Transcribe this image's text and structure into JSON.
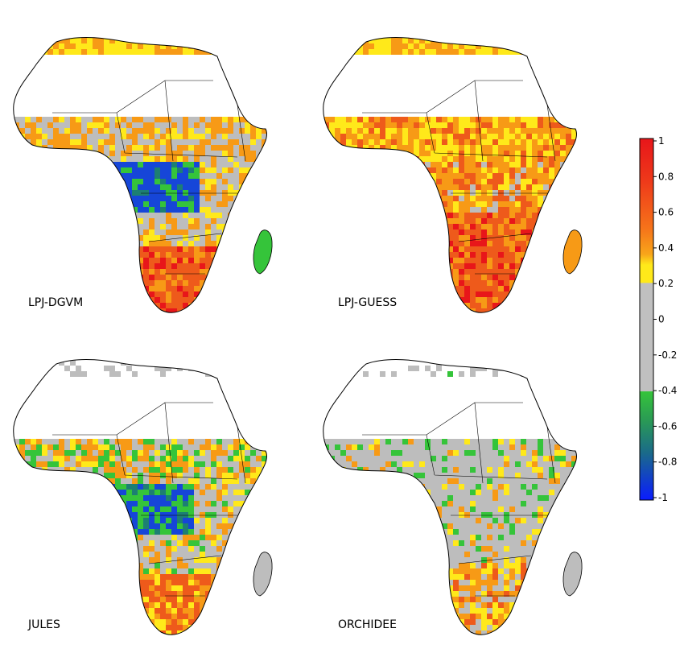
{
  "figure": {
    "panels": [
      {
        "label": "LPJ-DGVM"
      },
      {
        "label": "LPJ-GUESS"
      },
      {
        "label": "JULES"
      },
      {
        "label": "ORCHIDEE"
      }
    ],
    "colorbar": {
      "ticks": [
        "1",
        "0.8",
        "0.6",
        "0.4",
        "0.2",
        "0",
        "-0.2",
        "-0.4",
        "-0.6",
        "-0.8",
        "-1"
      ],
      "range": [
        -1,
        1
      ],
      "colors": {
        "top": "#e8161a",
        "orange_red": "#ee5a1b",
        "orange": "#f79a16",
        "yellow": "#ffe91a",
        "neutral": "#bdbdbd",
        "green": "#35c43a",
        "teal": "#1d7f73",
        "blue": "#1646d8",
        "bottom": "#0a1cff"
      }
    }
  }
}
